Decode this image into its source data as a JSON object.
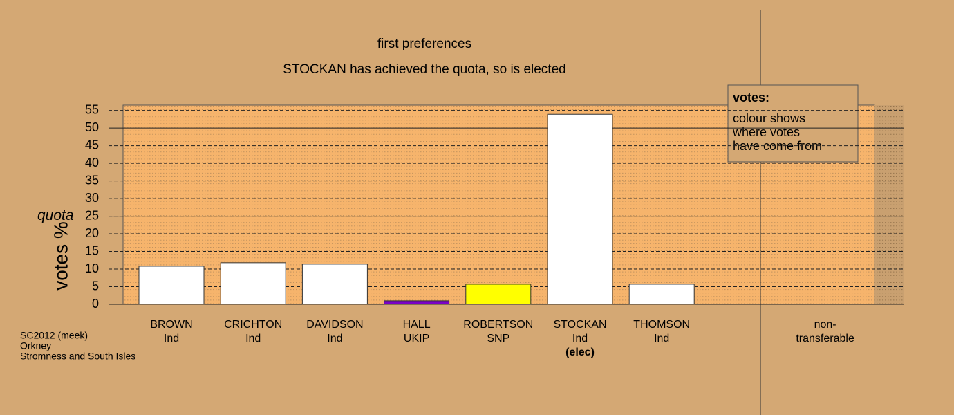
{
  "chart_data": {
    "type": "bar",
    "title": "first preferences",
    "subtitle": "STOCKAN has achieved the quota, so is elected",
    "ylabel": "votes %",
    "categories": [
      [
        "BROWN",
        "Ind"
      ],
      [
        "CRICHTON",
        "Ind"
      ],
      [
        "DAVIDSON",
        "Ind"
      ],
      [
        "HALL",
        "UKIP"
      ],
      [
        "ROBERTSON",
        "SNP"
      ],
      [
        "STOCKAN",
        "Ind",
        "(elec)"
      ],
      [
        "THOMSON",
        "Ind"
      ],
      [
        "non-",
        "transferable"
      ]
    ],
    "values": [
      10.8,
      11.8,
      11.4,
      1.0,
      5.7,
      53.9,
      5.7,
      0
    ],
    "colors": [
      "#ffffff",
      "#ffffff",
      "#ffffff",
      "#7a00c8",
      "#ffff00",
      "#ffffff",
      "#ffffff",
      "#ffffff"
    ],
    "ylim": [
      0,
      56.5
    ],
    "yticks": [
      0,
      5,
      10,
      15,
      20,
      25,
      30,
      35,
      40,
      45,
      50,
      55
    ],
    "quota": 25,
    "quota_label": "quota",
    "legend": {
      "title": "votes:",
      "lines": [
        "colour shows",
        "where votes",
        "have come from"
      ]
    },
    "footer": [
      "SC2012 (meek)",
      "Orkney",
      "Stromness and South Isles"
    ]
  }
}
